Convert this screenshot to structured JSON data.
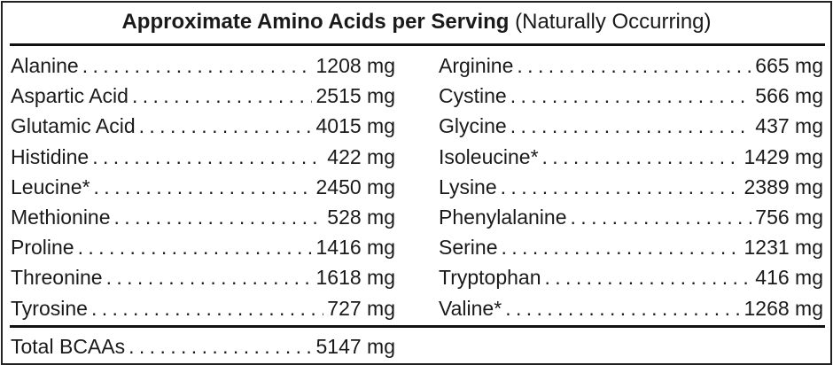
{
  "title": {
    "bold": "Approximate Amino Acids per Serving",
    "sub": "(Naturally Occurring)"
  },
  "left": [
    {
      "name": "Alanine",
      "value": "1208 mg"
    },
    {
      "name": "Aspartic Acid",
      "value": "2515 mg"
    },
    {
      "name": "Glutamic Acid",
      "value": "4015 mg"
    },
    {
      "name": "Histidine",
      "value": "422 mg"
    },
    {
      "name": "Leucine*",
      "value": "2450 mg"
    },
    {
      "name": "Methionine",
      "value": "528 mg"
    },
    {
      "name": "Proline",
      "value": "1416 mg"
    },
    {
      "name": "Threonine",
      "value": "1618 mg"
    },
    {
      "name": "Tyrosine",
      "value": "727 mg"
    }
  ],
  "right": [
    {
      "name": "Arginine",
      "value": "665 mg"
    },
    {
      "name": "Cystine",
      "value": "566 mg"
    },
    {
      "name": "Glycine",
      "value": "437 mg"
    },
    {
      "name": "Isoleucine*",
      "value": "1429 mg"
    },
    {
      "name": "Lysine",
      "value": "2389 mg"
    },
    {
      "name": "Phenylalanine",
      "value": "756 mg"
    },
    {
      "name": "Serine",
      "value": "1231 mg"
    },
    {
      "name": "Tryptophan",
      "value": "416 mg"
    },
    {
      "name": "Valine*",
      "value": "1268 mg"
    }
  ],
  "total": {
    "name": "Total BCAAs",
    "value": "5147 mg"
  }
}
